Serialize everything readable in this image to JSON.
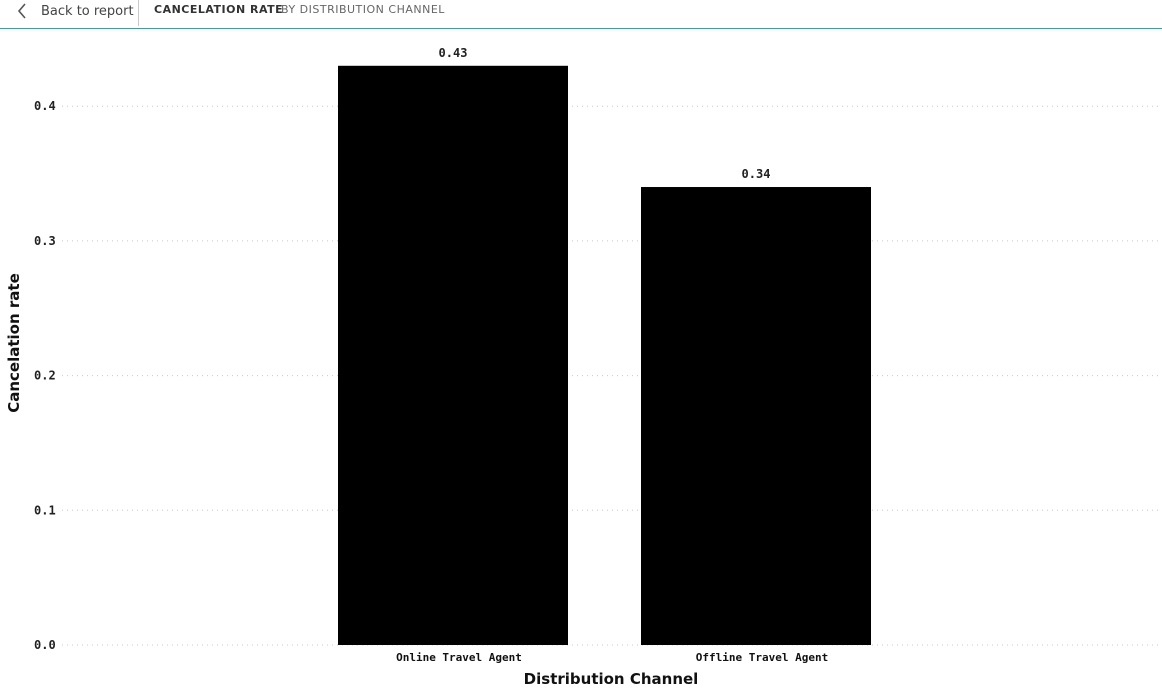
{
  "header": {
    "back_label": "Back to report",
    "title": "CANCELATION RATE",
    "subtitle": "BY DISTRIBUTION CHANNEL",
    "accent_color": "#2aa5a8",
    "back_icon": "chevron-left-icon"
  },
  "chart_data": {
    "type": "bar",
    "categories": [
      "Online Travel Agent",
      "Offline Travel Agent"
    ],
    "values": [
      0.43,
      0.34
    ],
    "data_labels": [
      "0.43",
      "0.34"
    ],
    "xlabel": "Distribution Channel",
    "ylabel": "Cancelation rate",
    "ylim": [
      0,
      0.4
    ],
    "yticks": [
      0.0,
      0.1,
      0.2,
      0.3,
      0.4
    ],
    "ytick_labels": [
      "0.0",
      "0.1",
      "0.2",
      "0.3",
      "0.4"
    ],
    "grid": true,
    "bar_color": "#000000"
  }
}
